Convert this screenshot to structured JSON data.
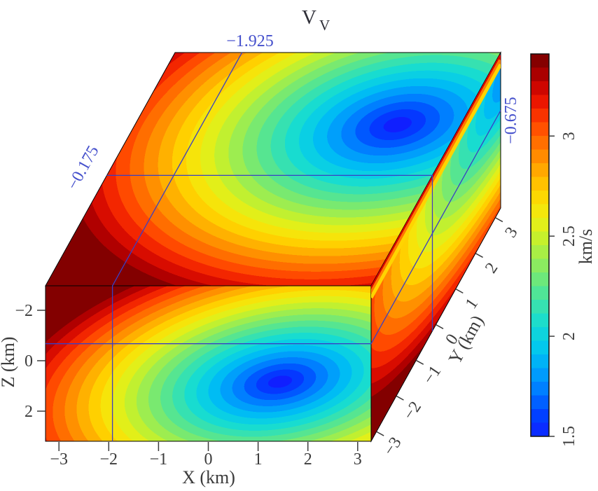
{
  "title": {
    "main": "V",
    "subscript": "V"
  },
  "slice_labels": {
    "x_slice": "−1.925",
    "y_slice": "−0.175",
    "z_slice": "−0.675"
  },
  "axes": {
    "x": {
      "label": "X (km)",
      "ticks": [
        "−3",
        "−2",
        "−1",
        "0",
        "1",
        "2",
        "3"
      ],
      "tick_values": [
        -3,
        -2,
        -1,
        0,
        1,
        2,
        3
      ]
    },
    "y": {
      "label": "Y (km)",
      "ticks": [
        "−3",
        "−2",
        "−1",
        "0",
        "1",
        "2",
        "3"
      ],
      "tick_values": [
        -3,
        -2,
        -1,
        0,
        1,
        2,
        3
      ]
    },
    "z": {
      "label": "Z (km)",
      "ticks": [
        "−2",
        "0",
        "2"
      ],
      "tick_values": [
        -2,
        0,
        2
      ]
    }
  },
  "colorbar": {
    "label": "km/s",
    "ticks": [
      "1.5",
      "2",
      "2.5",
      "3"
    ],
    "tick_values": [
      1.5,
      2,
      2.5,
      3
    ],
    "min": 1.5,
    "max": 3.41
  },
  "colors": {
    "slice_line": "#3a3fc4",
    "slice_label": "#4550cc",
    "axis_text": "#3c3c3c",
    "outline": "#000000",
    "background": "#ffffff"
  },
  "colormap": [
    [
      0.0,
      "#1612ff"
    ],
    [
      0.08,
      "#0042ff"
    ],
    [
      0.16,
      "#008cff"
    ],
    [
      0.24,
      "#00c4f2"
    ],
    [
      0.31,
      "#16dcd2"
    ],
    [
      0.38,
      "#48e49e"
    ],
    [
      0.45,
      "#84ea66"
    ],
    [
      0.52,
      "#c0f030"
    ],
    [
      0.58,
      "#f0ee10"
    ],
    [
      0.64,
      "#ffd400"
    ],
    [
      0.7,
      "#ffa800"
    ],
    [
      0.76,
      "#ff7700"
    ],
    [
      0.82,
      "#ff4400"
    ],
    [
      0.87,
      "#ee1800"
    ],
    [
      0.92,
      "#c40000"
    ],
    [
      0.96,
      "#970000"
    ],
    [
      1.0,
      "#6e0000"
    ]
  ],
  "chart_data": {
    "type": "3d-volume-slices",
    "title": "V_V",
    "units": "km/s",
    "slices": {
      "x_km": -1.925,
      "y_km": -0.175,
      "z_km": -0.675
    },
    "x_range_km": [
      -3.27,
      3.27
    ],
    "y_range_km": [
      -3.27,
      3.27
    ],
    "z_range_km": [
      -2.97,
      3.19
    ],
    "colorbar": {
      "label": "km/s",
      "min": 1.5,
      "max": 3.41,
      "ticks": [
        1.5,
        2,
        2.5,
        3
      ],
      "colormap": "jet"
    },
    "field_summary": "Vertical-velocity (V_V) model shown as an oblique 3D block with filled rainbow contours; an ellipsoidal low-velocity core of about 1.5 km/s (deep blue) sits right of center on the top and front slices, and velocity rises concentrically through cyan, green, yellow, orange and red to about 3.4 km/s (dark red) at the block corners; thin blue lines mark the orthogonal slice planes at X = -1.925 km, Y = -0.175 km and Z = -0.675 km."
  }
}
